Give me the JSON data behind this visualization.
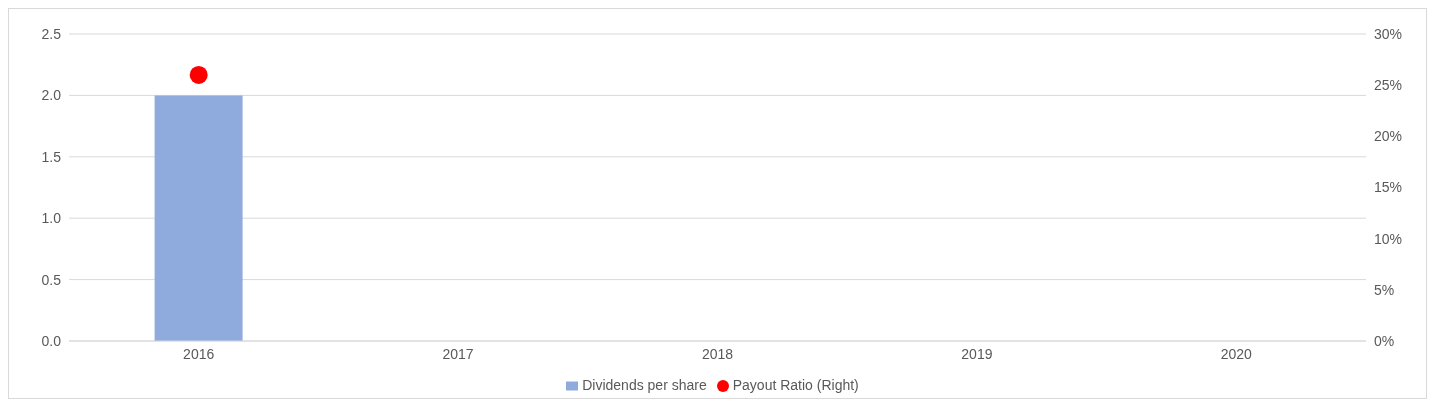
{
  "chart_data": {
    "type": "bar",
    "categories": [
      "2016",
      "2017",
      "2018",
      "2019",
      "2020"
    ],
    "series": [
      {
        "name": "Dividends per share",
        "color": "#8faadc",
        "values": [
          2.0,
          null,
          null,
          null,
          null
        ]
      },
      {
        "name": "Payout Ratio (Right)",
        "type": "scatter",
        "axis": "y2",
        "color": "#ff0000",
        "marker": "circle",
        "values": [
          26,
          null,
          null,
          null,
          null
        ]
      }
    ],
    "ylim": [
      0,
      2.5
    ],
    "yticks": [
      {
        "value": 0,
        "label": "0.0"
      },
      {
        "value": 0.5,
        "label": "0.5"
      },
      {
        "value": 1,
        "label": "1.0"
      },
      {
        "value": 1.5,
        "label": "1.5"
      },
      {
        "value": 2,
        "label": "2.0"
      },
      {
        "value": 2.5,
        "label": "2.5"
      }
    ],
    "y2lim": [
      0,
      30
    ],
    "y2ticks": [
      {
        "value": 0,
        "label": "0%"
      },
      {
        "value": 5,
        "label": "5%"
      },
      {
        "value": 10,
        "label": "10%"
      },
      {
        "value": 15,
        "label": "15%"
      },
      {
        "value": 20,
        "label": "20%"
      },
      {
        "value": 25,
        "label": "25%"
      },
      {
        "value": 30,
        "label": "30%"
      }
    ],
    "grid": "y",
    "legend": "bottom"
  }
}
